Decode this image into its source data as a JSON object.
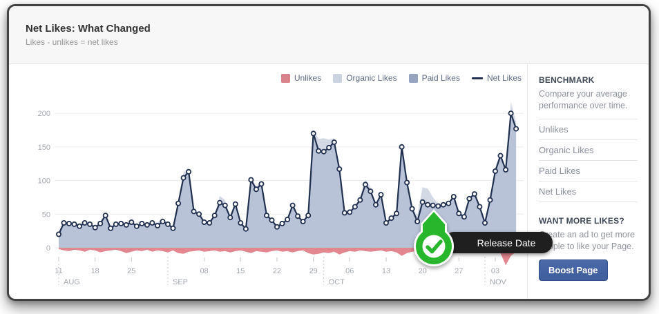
{
  "header": {
    "title": "Net Likes: What Changed",
    "subtitle": "Likes - unlikes = net likes"
  },
  "sidebar": {
    "benchmark_title": "BENCHMARK",
    "benchmark_desc": "Compare your average performance over time.",
    "items": [
      "Unlikes",
      "Organic Likes",
      "Paid Likes",
      "Net Likes"
    ],
    "want_title": "WANT MORE LIKES?",
    "want_desc": "Create an ad to get more people to like your Page.",
    "boost_label": "Boost Page"
  },
  "annotation": {
    "label": "Release Date",
    "badge_color": "#28b62c",
    "anchor_date": "Oct 22"
  },
  "chart_data": {
    "type": "area",
    "title": "Net Likes: What Changed",
    "x_start": "Aug 11",
    "x_end": "Nov 7",
    "x_frequency": "daily",
    "ylim": [
      -30,
      220
    ],
    "y_ticks": [
      0,
      50,
      100,
      150,
      200
    ],
    "grid": true,
    "legend_position": "top-right",
    "legend": [
      {
        "label": "Unlikes",
        "color": "#d9848c",
        "marker": "square"
      },
      {
        "label": "Organic Likes",
        "color": "#ccd3e1",
        "marker": "square"
      },
      {
        "label": "Paid Likes",
        "color": "#96a4c2",
        "marker": "square"
      },
      {
        "label": "Net Likes",
        "color": "#20304f",
        "marker": "line"
      }
    ],
    "x_ticks": [
      {
        "i": 0,
        "label": "11"
      },
      {
        "i": 7,
        "label": "18"
      },
      {
        "i": 14,
        "label": "25"
      },
      {
        "i": 28,
        "label": "08"
      },
      {
        "i": 35,
        "label": "15"
      },
      {
        "i": 42,
        "label": "22"
      },
      {
        "i": 49,
        "label": "29"
      },
      {
        "i": 56,
        "label": "06"
      },
      {
        "i": 63,
        "label": "13"
      },
      {
        "i": 70,
        "label": "20"
      },
      {
        "i": 77,
        "label": "27"
      },
      {
        "i": 84,
        "label": "03"
      }
    ],
    "month_lines": [
      {
        "i": 0,
        "label": "AUG"
      },
      {
        "i": 21,
        "label": "SEP"
      },
      {
        "i": 51,
        "label": "OCT"
      },
      {
        "i": 82,
        "label": "NOV"
      }
    ],
    "series": [
      {
        "name": "Net Likes",
        "type": "line+markers",
        "color": "#20304f",
        "values": [
          20,
          37,
          36,
          35,
          32,
          37,
          35,
          30,
          36,
          48,
          29,
          35,
          36,
          34,
          38,
          32,
          36,
          34,
          37,
          33,
          39,
          35,
          29,
          66,
          104,
          113,
          54,
          50,
          38,
          37,
          48,
          67,
          63,
          45,
          65,
          37,
          28,
          101,
          87,
          95,
          48,
          41,
          31,
          36,
          42,
          63,
          47,
          39,
          48,
          170,
          144,
          143,
          149,
          157,
          117,
          52,
          53,
          61,
          71,
          94,
          84,
          64,
          79,
          37,
          44,
          51,
          150,
          97,
          58,
          39,
          68,
          64,
          63,
          62,
          64,
          66,
          76,
          51,
          46,
          73,
          80,
          61,
          37,
          71,
          114,
          137,
          116,
          200,
          177
        ]
      },
      {
        "name": "Organic + Paid Likes (stacked total, peeks above net line)",
        "type": "area",
        "color": "#d3dae6",
        "extra_above_net": [
          0,
          0,
          0,
          0,
          0,
          0,
          0,
          0,
          0,
          4,
          0,
          0,
          0,
          0,
          0,
          0,
          0,
          0,
          0,
          4,
          6,
          0,
          0,
          6,
          8,
          6,
          0,
          0,
          0,
          0,
          0,
          10,
          8,
          0,
          4,
          0,
          0,
          5,
          4,
          4,
          0,
          0,
          0,
          0,
          0,
          5,
          0,
          0,
          5,
          6,
          18,
          20,
          12,
          6,
          0,
          0,
          0,
          0,
          4,
          8,
          6,
          0,
          4,
          0,
          0,
          4,
          8,
          5,
          0,
          10,
          22,
          24,
          12,
          4,
          0,
          0,
          5,
          0,
          0,
          0,
          4,
          0,
          0,
          0,
          5,
          6,
          0,
          17,
          10
        ]
      },
      {
        "name": "Paid Likes (main fill under net line)",
        "type": "area",
        "color": "#b9c3d8"
      },
      {
        "name": "Unlikes",
        "type": "area",
        "color": "#e2868f",
        "values": [
          -2,
          -4,
          -5,
          -3,
          -4,
          -6,
          -3,
          -4,
          -7,
          -5,
          -4,
          -3,
          -5,
          -8,
          -6,
          -4,
          -5,
          -3,
          -6,
          -4,
          -5,
          -7,
          -4,
          -8,
          -9,
          -6,
          -5,
          -4,
          -6,
          -5,
          -4,
          -6,
          -5,
          -7,
          -5,
          -4,
          -6,
          -8,
          -5,
          -6,
          -7,
          -5,
          -4,
          -6,
          -5,
          -7,
          -5,
          -4,
          -8,
          -10,
          -9,
          -7,
          -8,
          -6,
          -10,
          -7,
          -5,
          -6,
          -4,
          -5,
          -6,
          -5,
          -4,
          -6,
          -5,
          -7,
          -12,
          -8,
          -6,
          -5,
          -12,
          -14,
          -10,
          -6,
          -5,
          -7,
          -5,
          -8,
          -6,
          -4,
          -5,
          -6,
          -8,
          -5,
          -6,
          -8,
          -26,
          -12,
          -6
        ]
      }
    ]
  }
}
